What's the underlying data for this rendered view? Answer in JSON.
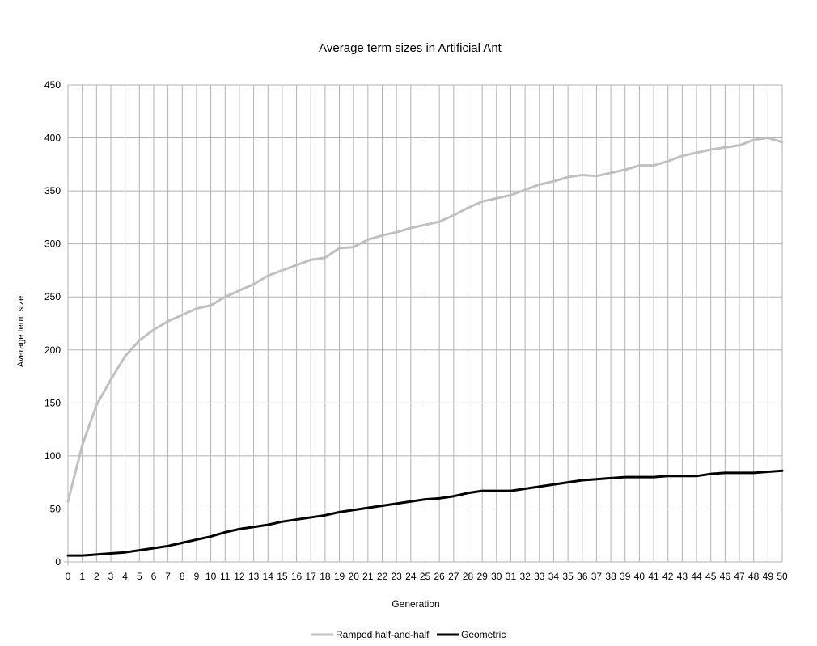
{
  "chart_data": {
    "type": "line",
    "title": "Average term sizes in Artificial Ant",
    "xlabel": "Generation",
    "ylabel": "Average term size",
    "xlim": [
      0,
      50
    ],
    "ylim": [
      0,
      450
    ],
    "yticks": [
      0,
      50,
      100,
      150,
      200,
      250,
      300,
      350,
      400,
      450
    ],
    "grid": true,
    "legend": "bottom-center",
    "x": [
      0,
      1,
      2,
      3,
      4,
      5,
      6,
      7,
      8,
      9,
      10,
      11,
      12,
      13,
      14,
      15,
      16,
      17,
      18,
      19,
      20,
      21,
      22,
      23,
      24,
      25,
      26,
      27,
      28,
      29,
      30,
      31,
      32,
      33,
      34,
      35,
      36,
      37,
      38,
      39,
      40,
      41,
      42,
      43,
      44,
      45,
      46,
      47,
      48,
      49,
      50
    ],
    "series": [
      {
        "name": "Ramped half-and-half",
        "color": "#c0c0c0",
        "values": [
          57,
          110,
          148,
          172,
          194,
          209,
          219,
          227,
          233,
          239,
          242,
          250,
          256,
          262,
          270,
          275,
          280,
          285,
          287,
          296,
          297,
          304,
          308,
          311,
          315,
          318,
          321,
          327,
          334,
          340,
          343,
          346,
          351,
          356,
          359,
          363,
          365,
          364,
          367,
          370,
          374,
          374,
          378,
          383,
          386,
          389,
          391,
          393,
          398,
          400,
          396
        ]
      },
      {
        "name": "Geometric",
        "color": "#000000",
        "values": [
          6,
          6,
          7,
          8,
          9,
          11,
          13,
          15,
          18,
          21,
          24,
          28,
          31,
          33,
          35,
          38,
          40,
          42,
          44,
          47,
          49,
          51,
          53,
          55,
          57,
          59,
          60,
          62,
          65,
          67,
          67,
          67,
          69,
          71,
          73,
          75,
          77,
          78,
          79,
          80,
          80,
          80,
          81,
          81,
          81,
          83,
          84,
          84,
          84,
          85,
          86
        ]
      }
    ]
  }
}
